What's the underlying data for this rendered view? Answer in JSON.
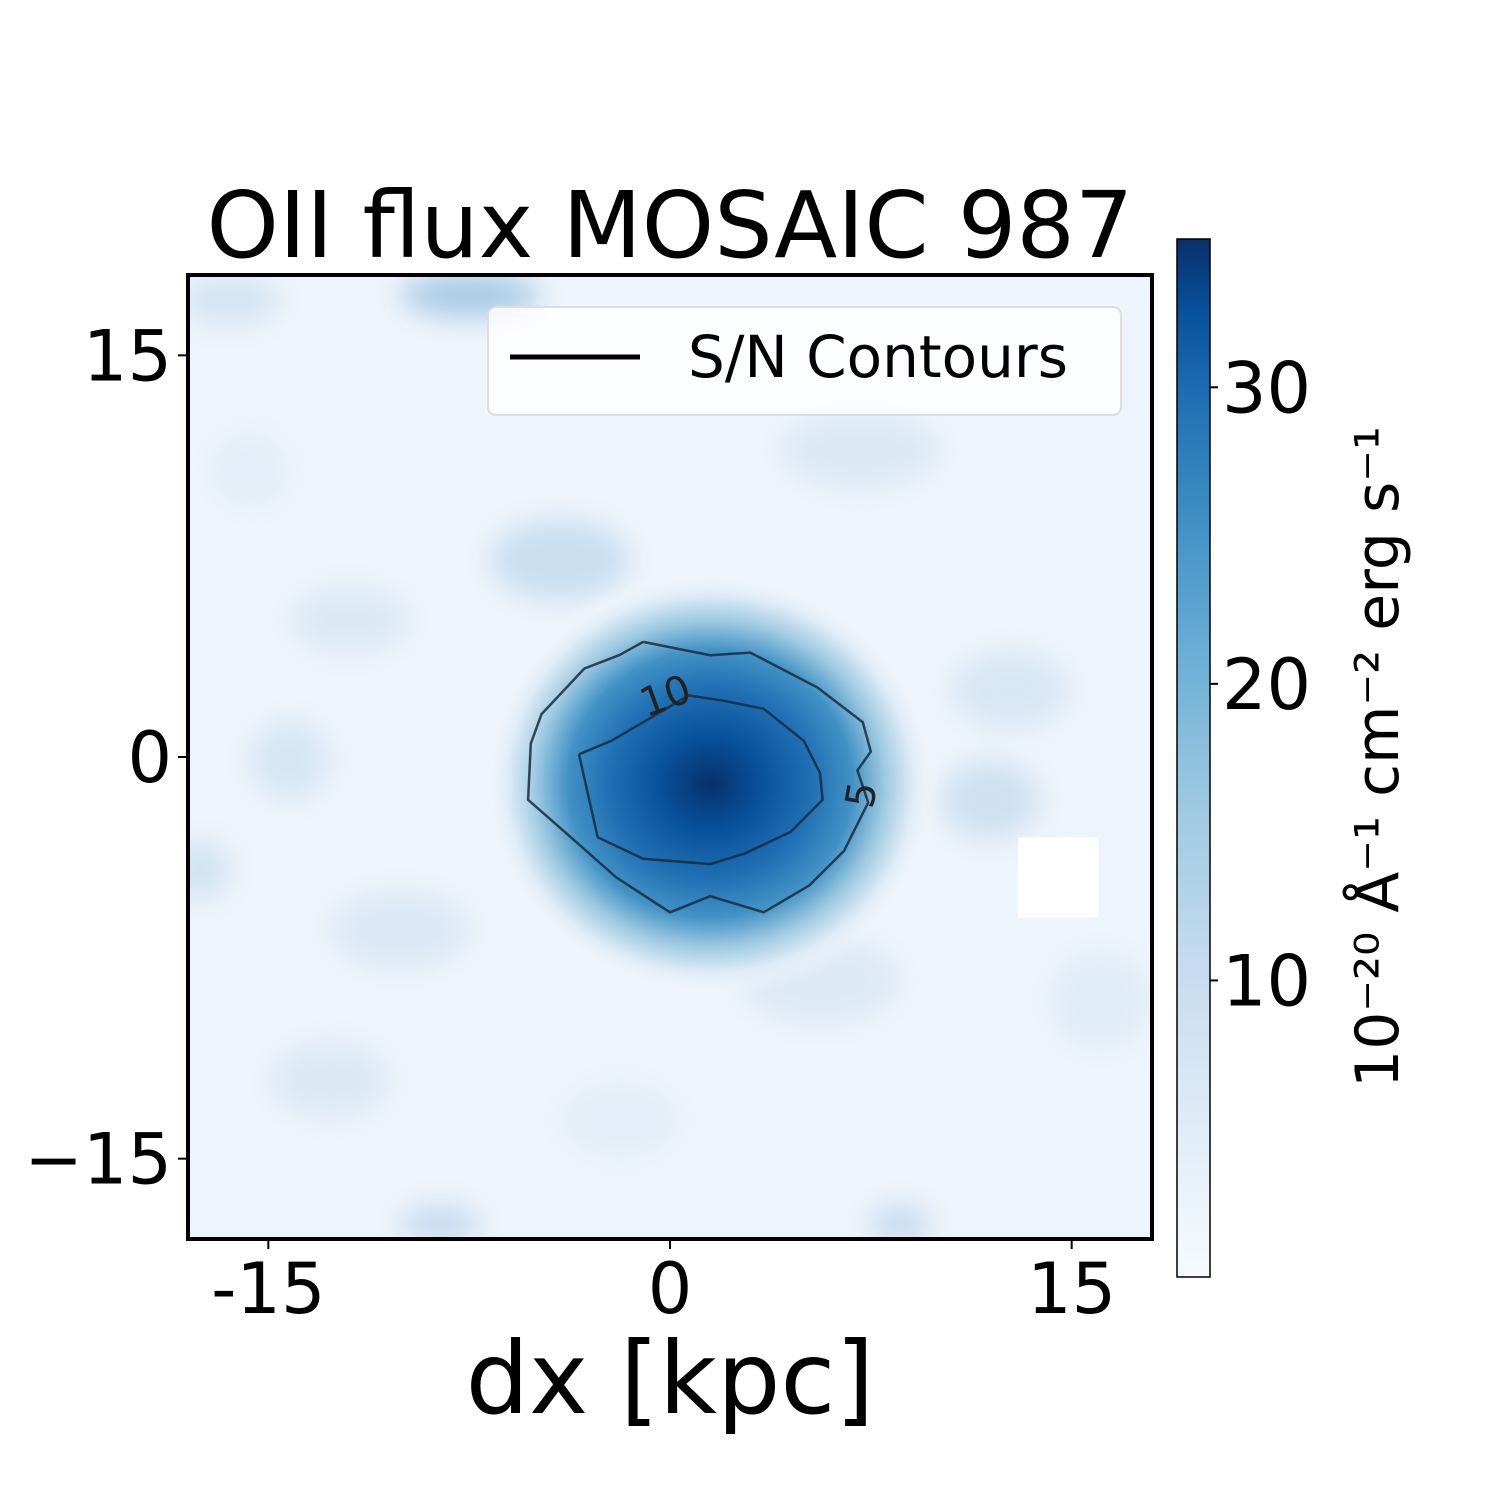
{
  "chart_data": {
    "type": "heatmap",
    "title": "OII flux MOSAIC 987",
    "xlabel": "dx [kpc]",
    "ylabel": "",
    "x_ticks": [
      {
        "value": -15,
        "label": "-15"
      },
      {
        "value": 0,
        "label": "0"
      },
      {
        "value": 15,
        "label": "15"
      }
    ],
    "y_ticks": [
      {
        "value": 15,
        "label": "15"
      },
      {
        "value": 0,
        "label": "0"
      },
      {
        "value": -15,
        "label": "−15"
      }
    ],
    "xlim": [
      -18,
      18
    ],
    "ylim": [
      -18,
      18
    ],
    "colormap": "Blues",
    "colorbar": {
      "label": "10⁻²⁰ Å⁻¹ cm⁻² erg s⁻¹",
      "vmin": 0,
      "vmax": 35,
      "ticks": [
        {
          "value": 10,
          "label": "10"
        },
        {
          "value": 20,
          "label": "20"
        },
        {
          "value": 30,
          "label": "30"
        }
      ]
    },
    "emission_peak": {
      "x": 1.5,
      "y": -1.0,
      "value": 35
    },
    "masked_region": {
      "x": [
        13,
        16
      ],
      "y": [
        -6,
        -3
      ]
    },
    "legend": {
      "entries": [
        "S/N Contours"
      ],
      "position": "upper right"
    },
    "contours": [
      {
        "level": 5,
        "label": "5",
        "points": [
          [
            -1,
            4.3
          ],
          [
            1.5,
            3.8
          ],
          [
            3,
            3.9
          ],
          [
            5.5,
            2.6
          ],
          [
            7.2,
            1.3
          ],
          [
            7.5,
            0.2
          ],
          [
            7.0,
            -0.5
          ],
          [
            7.4,
            -1.7
          ],
          [
            6.5,
            -3.5
          ],
          [
            5.2,
            -4.8
          ],
          [
            3.5,
            -5.8
          ],
          [
            1.5,
            -5.2
          ],
          [
            0,
            -5.8
          ],
          [
            -2.0,
            -4.5
          ],
          [
            -3.7,
            -3.0
          ],
          [
            -5.3,
            -1.6
          ],
          [
            -5.2,
            0.5
          ],
          [
            -4.8,
            1.6
          ],
          [
            -3.2,
            3.3
          ],
          [
            -1.9,
            3.8
          ],
          [
            -1,
            4.3
          ]
        ]
      },
      {
        "level": 10,
        "label": "10",
        "points": [
          [
            -3.4,
            0.1
          ],
          [
            -2.2,
            0.6
          ],
          [
            -1.0,
            1.3
          ],
          [
            0.7,
            2.3
          ],
          [
            2,
            2.1
          ],
          [
            3.5,
            1.8
          ],
          [
            5,
            0.6
          ],
          [
            5.6,
            -0.6
          ],
          [
            5.7,
            -1.6
          ],
          [
            4.5,
            -2.8
          ],
          [
            2.8,
            -3.6
          ],
          [
            1.5,
            -4.0
          ],
          [
            -1.0,
            -3.8
          ],
          [
            -2.7,
            -3.0
          ],
          [
            -3.4,
            0.1
          ]
        ]
      }
    ]
  }
}
